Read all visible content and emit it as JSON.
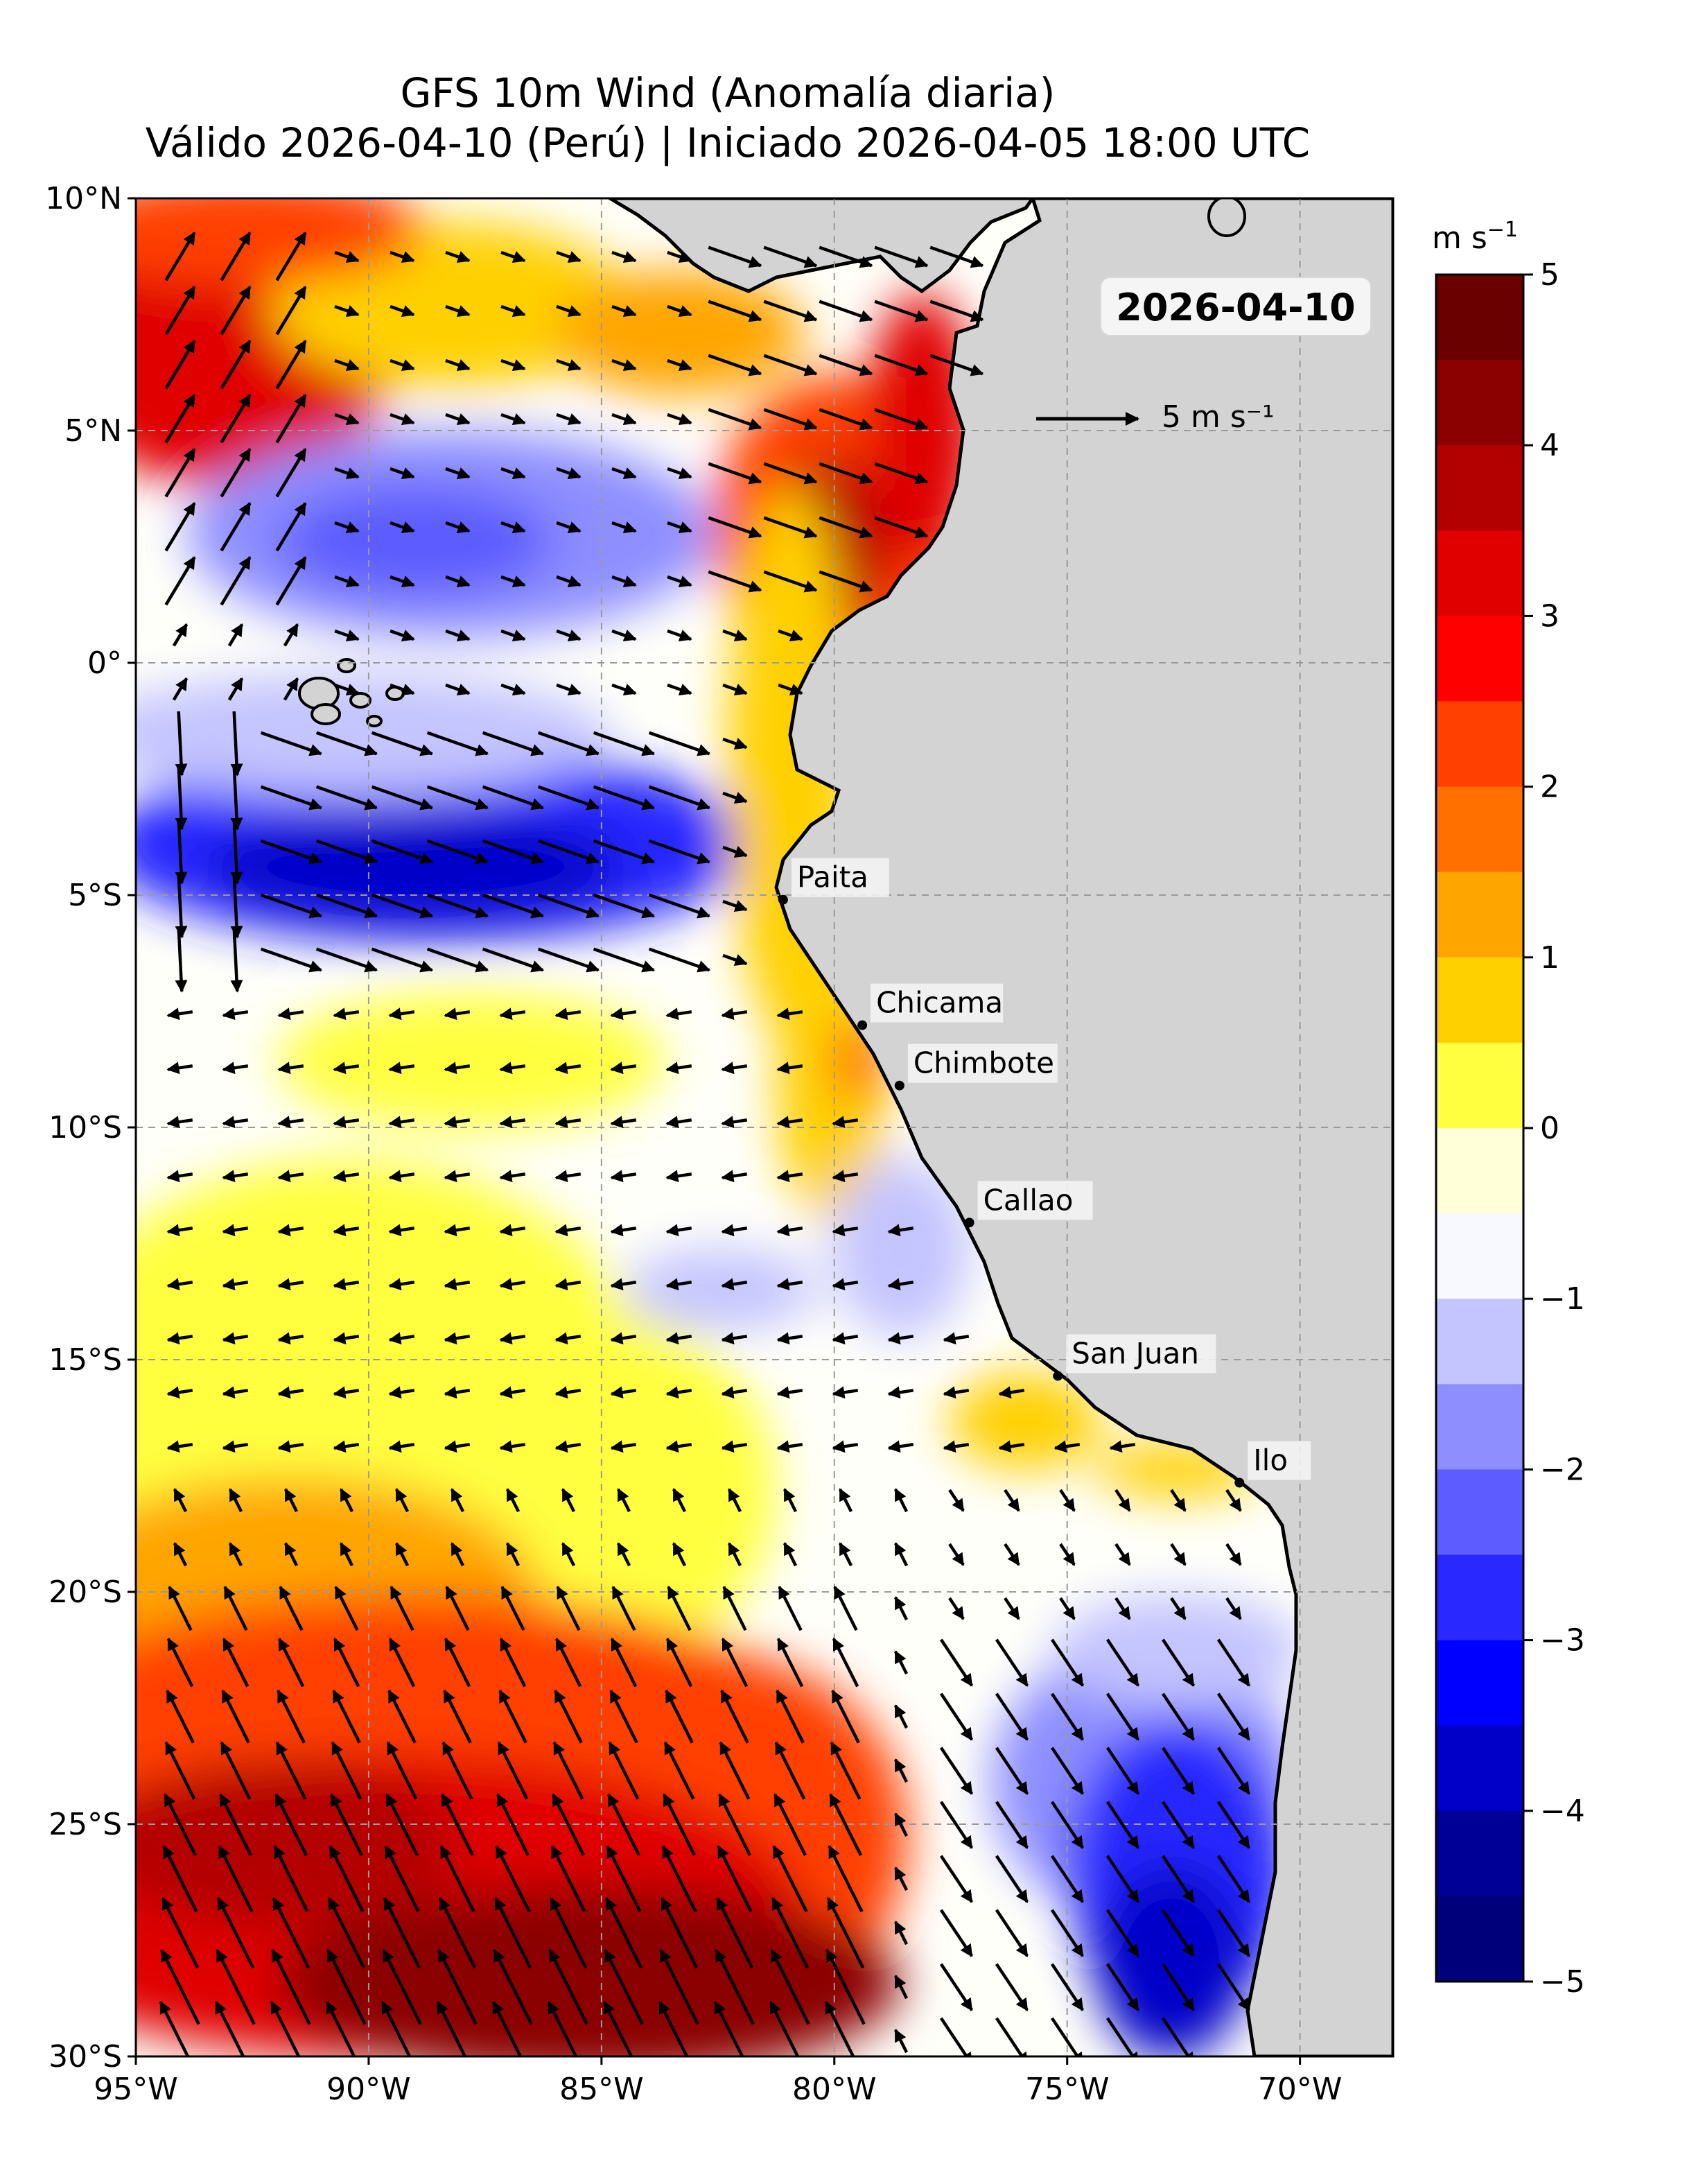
{
  "title": {
    "line1": "GFS 10m Wind (Anomalía diaria)",
    "line2": "Válido 2026-04-10 (Perú) | Iniciado 2026-04-05 18:00 UTC"
  },
  "date_badge": "2026-04-10",
  "reference_vector": {
    "label": "5 m s⁻¹",
    "magnitude_ms": 5
  },
  "map": {
    "lon_range": [
      -95,
      -68
    ],
    "lat_range": [
      -30,
      10
    ],
    "lon_ticks": [
      "95°W",
      "90°W",
      "85°W",
      "80°W",
      "75°W",
      "70°W"
    ],
    "lat_ticks": [
      "10°N",
      "5°N",
      "0°",
      "5°S",
      "10°S",
      "15°S",
      "20°S",
      "25°S",
      "30°S"
    ],
    "land_color": "#d3d3d3",
    "gridlines": true
  },
  "cities": [
    {
      "name": "Paita",
      "lon": -81.1,
      "lat": -5.1
    },
    {
      "name": "Chicama",
      "lon": -79.4,
      "lat": -7.8
    },
    {
      "name": "Chimbote",
      "lon": -78.6,
      "lat": -9.1
    },
    {
      "name": "Callao",
      "lon": -77.1,
      "lat": -12.05
    },
    {
      "name": "San Juan",
      "lon": -75.2,
      "lat": -15.35
    },
    {
      "name": "Ilo",
      "lon": -71.3,
      "lat": -17.65
    }
  ],
  "colorbar": {
    "unit": "m s⁻¹",
    "range": [
      -5,
      5
    ],
    "tick_labels": [
      "5",
      "4",
      "3",
      "2",
      "1",
      "0",
      "−1",
      "−2",
      "−3",
      "−4",
      "−5"
    ],
    "colors_high_to_low": [
      "#6b0000",
      "#8b0000",
      "#b30000",
      "#e00000",
      "#ff0000",
      "#ff4000",
      "#ff7000",
      "#ffa500",
      "#ffd000",
      "#ffff40",
      "#ffffd8",
      "#f8f8ff",
      "#c4c4ff",
      "#8e8eff",
      "#5c5cff",
      "#2828ff",
      "#0000ff",
      "#0000c8",
      "#000096",
      "#00007a"
    ]
  }
}
